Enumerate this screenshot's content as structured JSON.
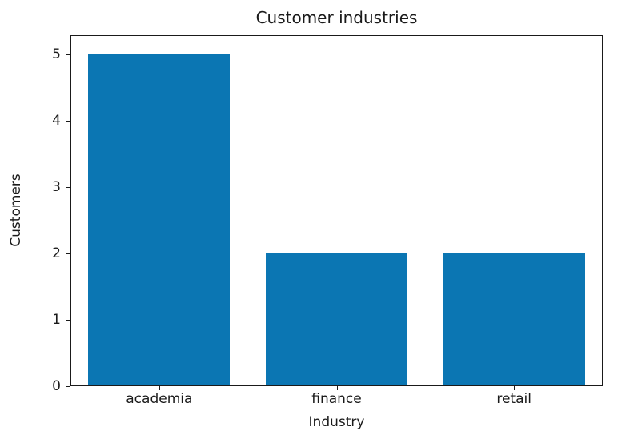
{
  "chart_data": {
    "type": "bar",
    "title": "Customer industries",
    "xlabel": "Industry",
    "ylabel": "Customers",
    "categories": [
      "academia",
      "finance",
      "retail"
    ],
    "values": [
      5,
      2,
      2
    ],
    "yticks": [
      0,
      1,
      2,
      3,
      4,
      5
    ],
    "ylim": [
      0,
      5.29
    ],
    "grid": false,
    "legend": "none",
    "colors": {
      "bar": "#0b76b3",
      "spine": "#1a1a1a",
      "text": "#1a1a1a",
      "background": "#ffffff"
    }
  }
}
